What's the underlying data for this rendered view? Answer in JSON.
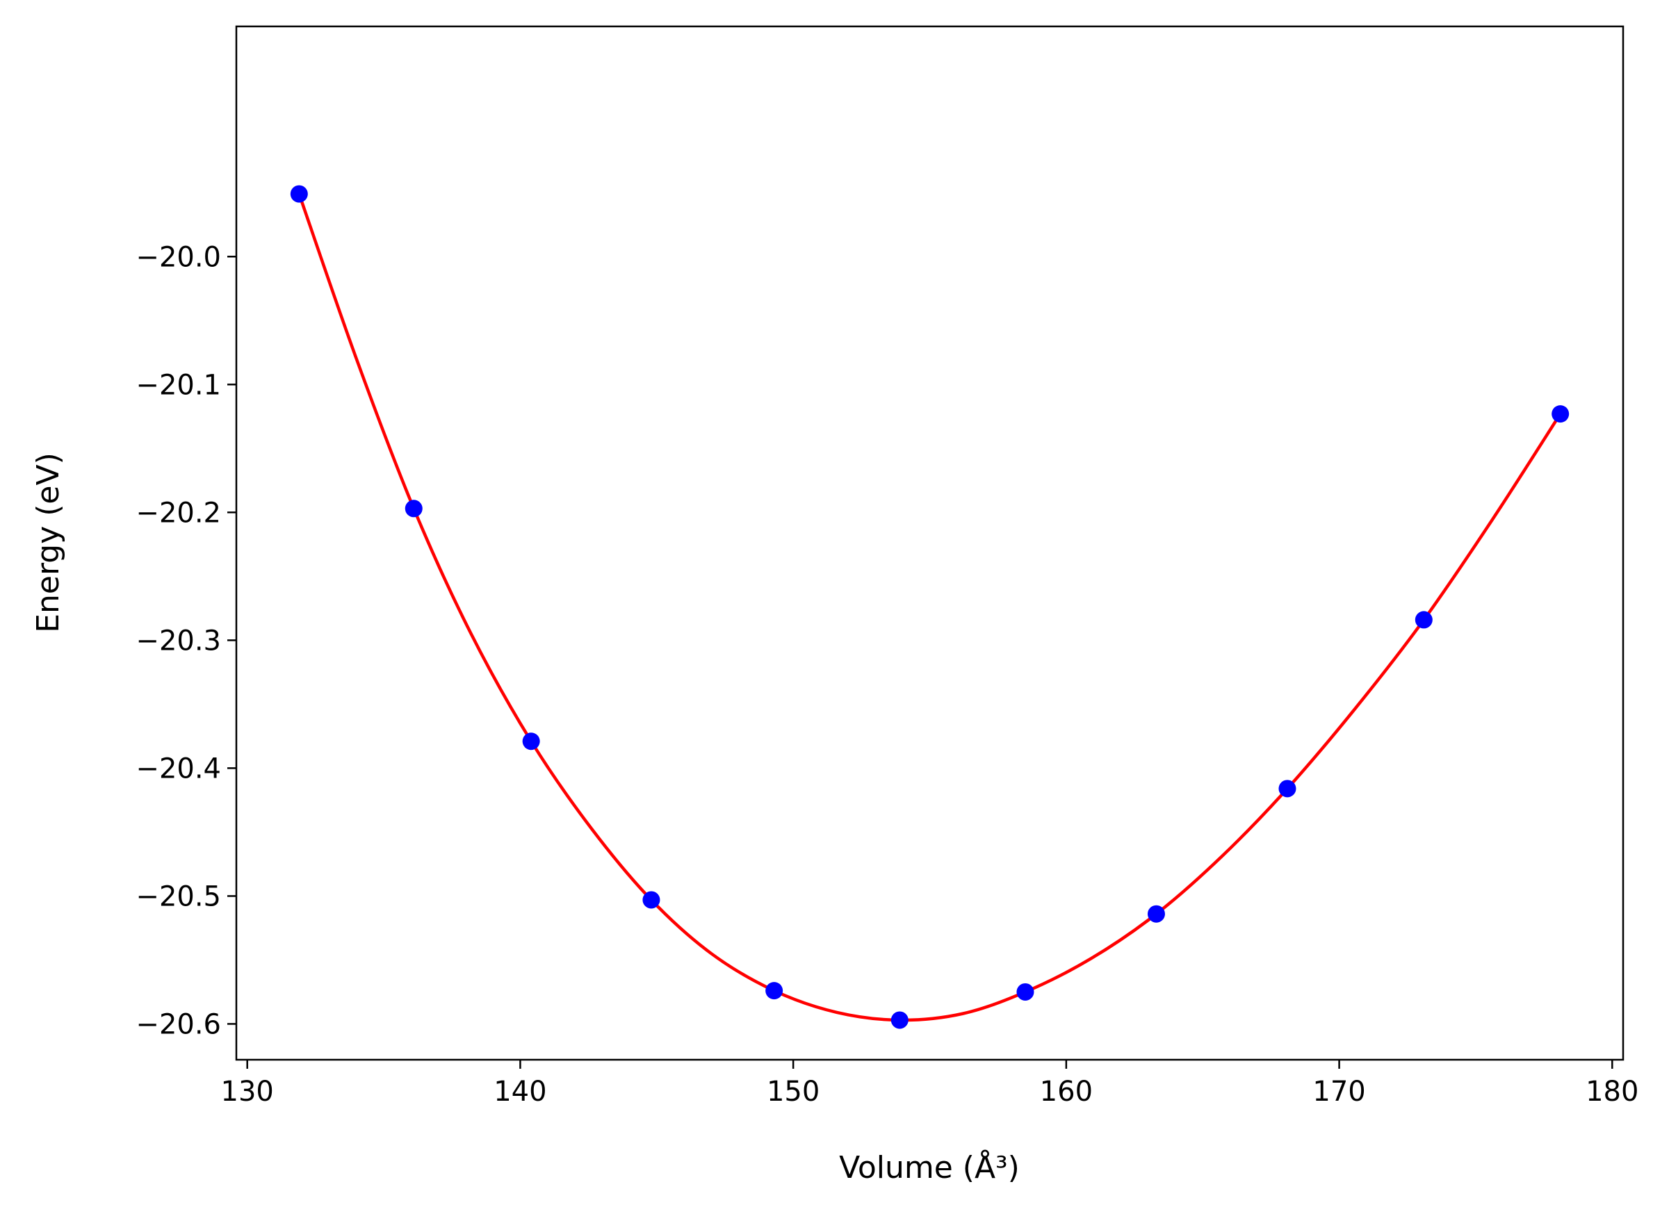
{
  "chart_data": {
    "type": "scatter",
    "xlabel": "Volume (Å³)",
    "ylabel": "Energy (eV)",
    "xlim": [
      129.6,
      180.4
    ],
    "ylim": [
      -20.628,
      -19.82
    ],
    "xticks": [
      130,
      140,
      150,
      160,
      170,
      180
    ],
    "xtick_labels": [
      "130",
      "140",
      "150",
      "160",
      "170",
      "180"
    ],
    "yticks": [
      -20.0,
      -20.1,
      -20.2,
      -20.3,
      -20.4,
      -20.5,
      -20.6
    ],
    "ytick_labels": [
      "−20.0",
      "−20.1",
      "−20.2",
      "−20.3",
      "−20.4",
      "−20.5",
      "−20.6"
    ],
    "grid": false,
    "series": [
      {
        "kind": "points",
        "color": "#0000ff",
        "x": [
          131.9,
          136.1,
          140.4,
          144.8,
          149.3,
          153.9,
          158.5,
          163.3,
          168.1,
          173.1,
          178.1
        ],
        "y": [
          -19.951,
          -20.197,
          -20.379,
          -20.503,
          -20.574,
          -20.597,
          -20.575,
          -20.514,
          -20.416,
          -20.284,
          -20.123
        ]
      },
      {
        "kind": "fit-curve",
        "color": "#ff0000",
        "x": [
          131.9,
          134.0,
          136.1,
          138.2,
          140.4,
          142.6,
          144.8,
          147.0,
          149.3,
          151.6,
          153.9,
          156.2,
          158.5,
          160.9,
          163.3,
          165.7,
          168.1,
          170.6,
          173.1,
          175.6,
          178.1
        ],
        "y": [
          -19.951,
          -20.08,
          -20.197,
          -20.295,
          -20.379,
          -20.447,
          -20.503,
          -20.545,
          -20.574,
          -20.591,
          -20.597,
          -20.592,
          -20.575,
          -20.549,
          -20.514,
          -20.469,
          -20.416,
          -20.353,
          -20.284,
          -20.206,
          -20.123
        ]
      }
    ]
  }
}
